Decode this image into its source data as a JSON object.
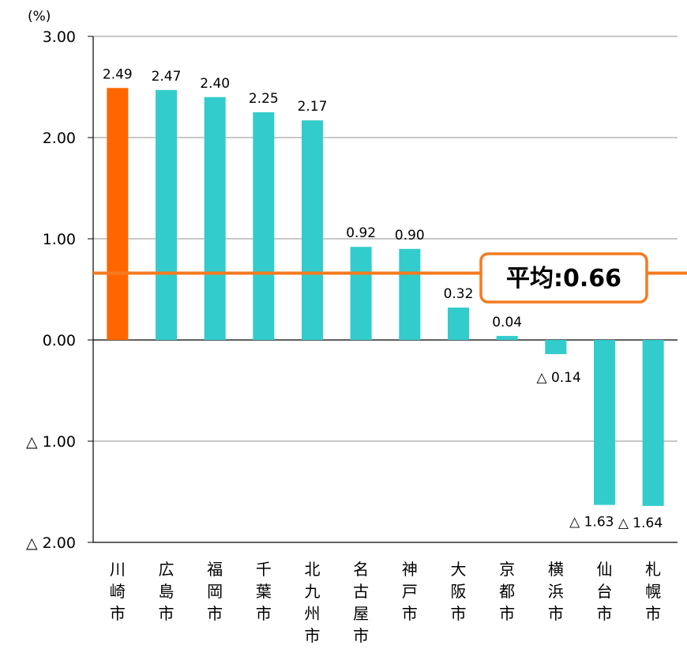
{
  "chart_data": {
    "type": "bar",
    "unit": "(%)",
    "categories": [
      "川崎市",
      "広島市",
      "福岡市",
      "千葉市",
      "北九州市",
      "名古屋市",
      "神戸市",
      "大阪市",
      "京都市",
      "横浜市",
      "仙台市",
      "札幌市"
    ],
    "values": [
      2.49,
      2.47,
      2.4,
      2.25,
      2.17,
      0.92,
      0.9,
      0.32,
      0.04,
      -0.14,
      -1.63,
      -1.64
    ],
    "value_labels": [
      "2.49",
      "2.47",
      "2.40",
      "2.25",
      "2.17",
      "0.92",
      "0.90",
      "0.32",
      "0.04",
      "△ 0.14",
      "△ 1.63",
      "△ 1.64"
    ],
    "highlight_index": 0,
    "ylim": [
      -2.0,
      3.0
    ],
    "yticks": [
      3.0,
      2.0,
      1.0,
      0.0,
      -1.0,
      -2.0
    ],
    "ytick_labels": [
      "3.00",
      "2.00",
      "1.00",
      "0.00",
      "△ 1.00",
      "△ 2.00"
    ],
    "grid": true,
    "average": {
      "value": 0.66,
      "label_prefix": "平均:",
      "label_value": "0.66"
    },
    "colors": {
      "highlight": "#FF6600",
      "bar": "#33CCCC",
      "average_line": "#F47A20",
      "grid": "#A6A6A6",
      "axis": "#000000"
    }
  }
}
